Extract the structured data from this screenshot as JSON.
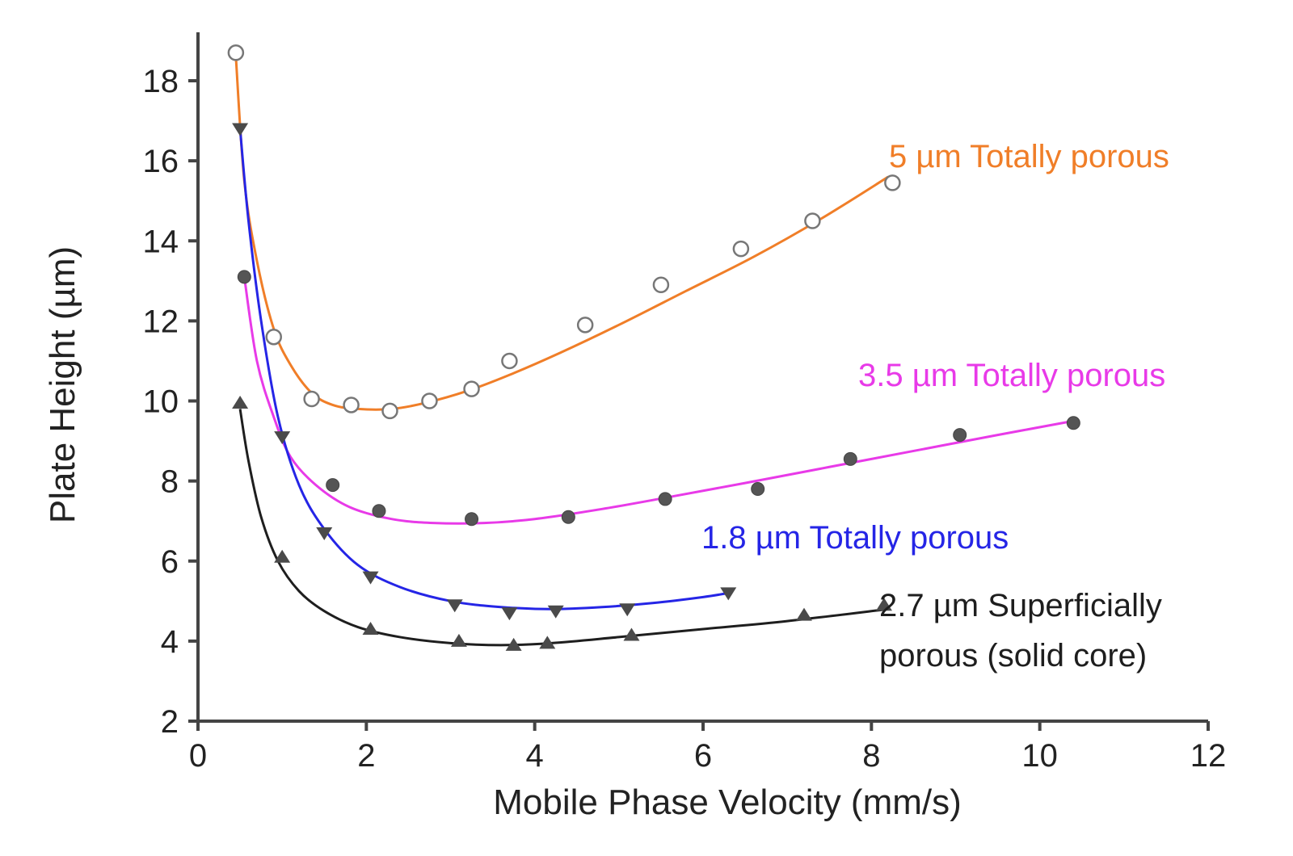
{
  "chart_data": {
    "type": "scatter",
    "title": "",
    "xlabel": "Mobile Phase Velocity (mm/s)",
    "ylabel": "Plate Height (µm)",
    "xlim": [
      0,
      12
    ],
    "ylim": [
      2,
      19
    ],
    "xticks": [
      0,
      2,
      4,
      6,
      8,
      10,
      12
    ],
    "yticks": [
      2,
      4,
      6,
      8,
      10,
      12,
      14,
      16,
      18
    ],
    "grid": false,
    "series": [
      {
        "name": "5 µm Totally porous",
        "label_lines": [
          "5 µm Totally porous"
        ],
        "color": "#f07e28",
        "marker": "open-circle",
        "points": [
          [
            0.45,
            18.7
          ],
          [
            0.9,
            11.6
          ],
          [
            1.35,
            10.05
          ],
          [
            1.82,
            9.9
          ],
          [
            2.28,
            9.75
          ],
          [
            2.75,
            10.0
          ],
          [
            3.25,
            10.3
          ],
          [
            3.7,
            11.0
          ],
          [
            4.6,
            11.9
          ],
          [
            5.5,
            12.9
          ],
          [
            6.45,
            13.8
          ],
          [
            7.3,
            14.5
          ],
          [
            8.25,
            15.45
          ]
        ],
        "curve": [
          [
            0.45,
            18.6
          ],
          [
            0.55,
            15.5
          ],
          [
            0.7,
            13.5
          ],
          [
            0.9,
            11.8
          ],
          [
            1.1,
            10.9
          ],
          [
            1.35,
            10.2
          ],
          [
            1.6,
            9.9
          ],
          [
            1.9,
            9.8
          ],
          [
            2.3,
            9.8
          ],
          [
            2.7,
            9.95
          ],
          [
            3.2,
            10.25
          ],
          [
            3.7,
            10.65
          ],
          [
            4.3,
            11.2
          ],
          [
            5.0,
            11.9
          ],
          [
            5.8,
            12.75
          ],
          [
            6.6,
            13.6
          ],
          [
            7.4,
            14.55
          ],
          [
            8.2,
            15.6
          ]
        ]
      },
      {
        "name": "3.5 µm Totally porous",
        "label_lines": [
          "3.5 µm Totally porous"
        ],
        "color": "#e83ae8",
        "marker": "filled-circle",
        "points": [
          [
            0.55,
            13.1
          ],
          [
            1.6,
            7.9
          ],
          [
            2.15,
            7.25
          ],
          [
            3.25,
            7.05
          ],
          [
            4.4,
            7.1
          ],
          [
            5.55,
            7.55
          ],
          [
            6.65,
            7.8
          ],
          [
            7.75,
            8.55
          ],
          [
            9.05,
            9.15
          ],
          [
            10.4,
            9.45
          ]
        ],
        "curve": [
          [
            0.55,
            13.1
          ],
          [
            0.7,
            11.0
          ],
          [
            0.9,
            9.6
          ],
          [
            1.1,
            8.6
          ],
          [
            1.4,
            7.9
          ],
          [
            1.8,
            7.35
          ],
          [
            2.3,
            7.05
          ],
          [
            2.8,
            6.95
          ],
          [
            3.4,
            6.95
          ],
          [
            4.0,
            7.05
          ],
          [
            4.8,
            7.3
          ],
          [
            5.6,
            7.6
          ],
          [
            6.5,
            7.95
          ],
          [
            7.5,
            8.35
          ],
          [
            8.5,
            8.75
          ],
          [
            9.5,
            9.15
          ],
          [
            10.4,
            9.5
          ]
        ]
      },
      {
        "name": "1.8 µm Totally porous",
        "label_lines": [
          "1.8 µm Totally porous"
        ],
        "color": "#2525e6",
        "marker": "down-triangle",
        "points": [
          [
            0.5,
            16.8
          ],
          [
            1.0,
            9.1
          ],
          [
            1.5,
            6.7
          ],
          [
            2.05,
            5.6
          ],
          [
            3.05,
            4.9
          ],
          [
            3.7,
            4.7
          ],
          [
            4.25,
            4.75
          ],
          [
            5.1,
            4.8
          ],
          [
            6.3,
            5.2
          ]
        ],
        "curve": [
          [
            0.5,
            16.8
          ],
          [
            0.6,
            14.5
          ],
          [
            0.75,
            12.0
          ],
          [
            0.95,
            9.6
          ],
          [
            1.2,
            7.9
          ],
          [
            1.5,
            6.8
          ],
          [
            1.9,
            5.9
          ],
          [
            2.4,
            5.35
          ],
          [
            3.0,
            5.0
          ],
          [
            3.6,
            4.85
          ],
          [
            4.2,
            4.8
          ],
          [
            4.8,
            4.85
          ],
          [
            5.4,
            4.95
          ],
          [
            6.0,
            5.1
          ],
          [
            6.3,
            5.2
          ]
        ]
      },
      {
        "name": "2.7 µm Superficially porous (solid core)",
        "label_lines": [
          "2.7 µm Superficially",
          "porous (solid core)"
        ],
        "color": "#1e1e1e",
        "marker": "up-triangle",
        "points": [
          [
            0.5,
            9.95
          ],
          [
            1.0,
            6.1
          ],
          [
            2.05,
            4.3
          ],
          [
            3.1,
            4.0
          ],
          [
            3.75,
            3.9
          ],
          [
            4.15,
            3.95
          ],
          [
            5.15,
            4.15
          ],
          [
            7.2,
            4.65
          ],
          [
            8.15,
            4.9
          ]
        ],
        "curve": [
          [
            0.5,
            9.8
          ],
          [
            0.6,
            8.5
          ],
          [
            0.75,
            7.1
          ],
          [
            0.95,
            6.0
          ],
          [
            1.2,
            5.25
          ],
          [
            1.5,
            4.75
          ],
          [
            1.9,
            4.35
          ],
          [
            2.4,
            4.1
          ],
          [
            3.0,
            3.95
          ],
          [
            3.6,
            3.9
          ],
          [
            4.2,
            3.95
          ],
          [
            5.0,
            4.1
          ],
          [
            6.0,
            4.3
          ],
          [
            7.0,
            4.5
          ],
          [
            8.2,
            4.8
          ]
        ]
      }
    ]
  }
}
